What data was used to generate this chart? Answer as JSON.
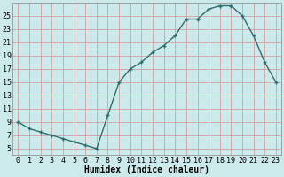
{
  "x": [
    0,
    1,
    2,
    3,
    4,
    5,
    6,
    7,
    8,
    9,
    10,
    11,
    12,
    13,
    14,
    15,
    16,
    17,
    18,
    19,
    20,
    21,
    22,
    23
  ],
  "y": [
    9,
    8,
    7.5,
    7,
    6.5,
    6,
    5.5,
    5,
    10,
    15,
    17,
    18,
    19.5,
    20.5,
    22,
    24.5,
    24.5,
    26,
    26.5,
    26.5,
    25,
    22,
    18,
    15
  ],
  "line_color": "#2d6e6e",
  "marker_color": "#2d6e6e",
  "bg_color": "#cceaea",
  "grid_color": "#d4a0a0",
  "xlabel": "Humidex (Indice chaleur)",
  "xlim": [
    -0.5,
    23.5
  ],
  "ylim": [
    4,
    27
  ],
  "yticks": [
    5,
    7,
    9,
    11,
    13,
    15,
    17,
    19,
    21,
    23,
    25
  ],
  "xticks": [
    0,
    1,
    2,
    3,
    4,
    5,
    6,
    7,
    8,
    9,
    10,
    11,
    12,
    13,
    14,
    15,
    16,
    17,
    18,
    19,
    20,
    21,
    22,
    23
  ],
  "label_fontsize": 7,
  "tick_fontsize": 6
}
